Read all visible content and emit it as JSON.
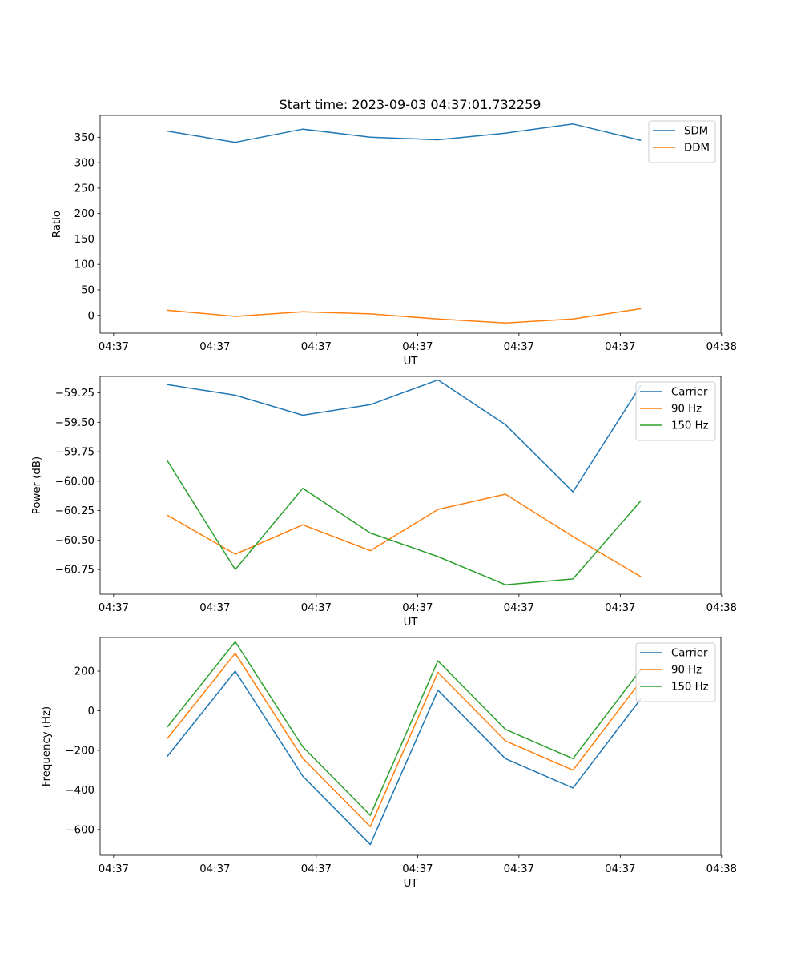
{
  "title": "Start time: 2023-09-03 04:37:01.732259",
  "chart_data": [
    {
      "type": "line",
      "title": "Start time: 2023-09-03 04:37:01.732259",
      "xlabel": "UT",
      "ylabel": "Ratio",
      "x": [
        1,
        2,
        3,
        4,
        5,
        6,
        7,
        8
      ],
      "xlim": [
        0,
        9.19
      ],
      "x_ticks": [
        0.2,
        1.7,
        3.2,
        4.7,
        6.2,
        7.7,
        9.2
      ],
      "x_tick_labels": [
        "04:37",
        "04:37",
        "04:37",
        "04:37",
        "04:37",
        "04:37",
        "04:38"
      ],
      "ylim": [
        -35,
        393
      ],
      "y_ticks": [
        0,
        50,
        100,
        150,
        200,
        250,
        300,
        350
      ],
      "y_tick_labels": [
        "0",
        "50",
        "100",
        "150",
        "200",
        "250",
        "300",
        "350"
      ],
      "legend_position": "upper right",
      "series": [
        {
          "name": "SDM",
          "color": "#1f77b4",
          "values": [
            362,
            340,
            366,
            350,
            345,
            358,
            376,
            344
          ]
        },
        {
          "name": "DDM",
          "color": "#ff7f0e",
          "values": [
            10,
            -2,
            7,
            3,
            -7,
            -15,
            -7,
            13
          ]
        }
      ]
    },
    {
      "type": "line",
      "xlabel": "UT",
      "ylabel": "Power (dB)",
      "x": [
        1,
        2,
        3,
        4,
        5,
        6,
        7,
        8
      ],
      "xlim": [
        0,
        9.19
      ],
      "x_ticks": [
        0.2,
        1.7,
        3.2,
        4.7,
        6.2,
        7.7,
        9.2
      ],
      "x_tick_labels": [
        "04:37",
        "04:37",
        "04:37",
        "04:37",
        "04:37",
        "04:37",
        "04:38"
      ],
      "ylim": [
        -60.96,
        -59.11
      ],
      "y_ticks": [
        -60.75,
        -60.5,
        -60.25,
        -60.0,
        -59.75,
        -59.5,
        -59.25
      ],
      "y_tick_labels": [
        "−60.75",
        "−60.50",
        "−60.25",
        "−60.00",
        "−59.75",
        "−59.50",
        "−59.25"
      ],
      "legend_position": "upper right",
      "series": [
        {
          "name": "Carrier",
          "color": "#1f77b4",
          "values": [
            -59.18,
            -59.27,
            -59.44,
            -59.35,
            -59.14,
            -59.52,
            -60.09,
            -59.19
          ]
        },
        {
          "name": "90 Hz",
          "color": "#ff7f0e",
          "values": [
            -60.29,
            -60.62,
            -60.37,
            -60.59,
            -60.24,
            -60.11,
            -60.47,
            -60.81
          ]
        },
        {
          "name": "150 Hz",
          "color": "#2ca02c",
          "values": [
            -59.83,
            -60.75,
            -60.06,
            -60.44,
            -60.64,
            -60.88,
            -60.83,
            -60.17
          ]
        }
      ]
    },
    {
      "type": "line",
      "xlabel": "UT",
      "ylabel": "Frequency (Hz)",
      "x": [
        1,
        2,
        3,
        4,
        5,
        6,
        7,
        8
      ],
      "xlim": [
        0,
        9.19
      ],
      "x_ticks": [
        0.2,
        1.7,
        3.2,
        4.7,
        6.2,
        7.7,
        9.2
      ],
      "x_tick_labels": [
        "04:37",
        "04:37",
        "04:37",
        "04:37",
        "04:37",
        "04:37",
        "04:38"
      ],
      "ylim": [
        -730,
        370
      ],
      "y_ticks": [
        -600,
        -400,
        -200,
        0,
        200
      ],
      "y_tick_labels": [
        "−600",
        "−400",
        "−200",
        "0",
        "200"
      ],
      "legend_position": "upper right",
      "series": [
        {
          "name": "Carrier",
          "color": "#1f77b4",
          "values": [
            -228,
            200,
            -330,
            -676,
            104,
            -242,
            -390,
            58
          ]
        },
        {
          "name": "90 Hz",
          "color": "#ff7f0e",
          "values": [
            -138,
            290,
            -240,
            -586,
            194,
            -152,
            -300,
            148
          ]
        },
        {
          "name": "150 Hz",
          "color": "#2ca02c",
          "values": [
            -80,
            348,
            -182,
            -528,
            252,
            -94,
            -242,
            206
          ]
        }
      ]
    }
  ]
}
